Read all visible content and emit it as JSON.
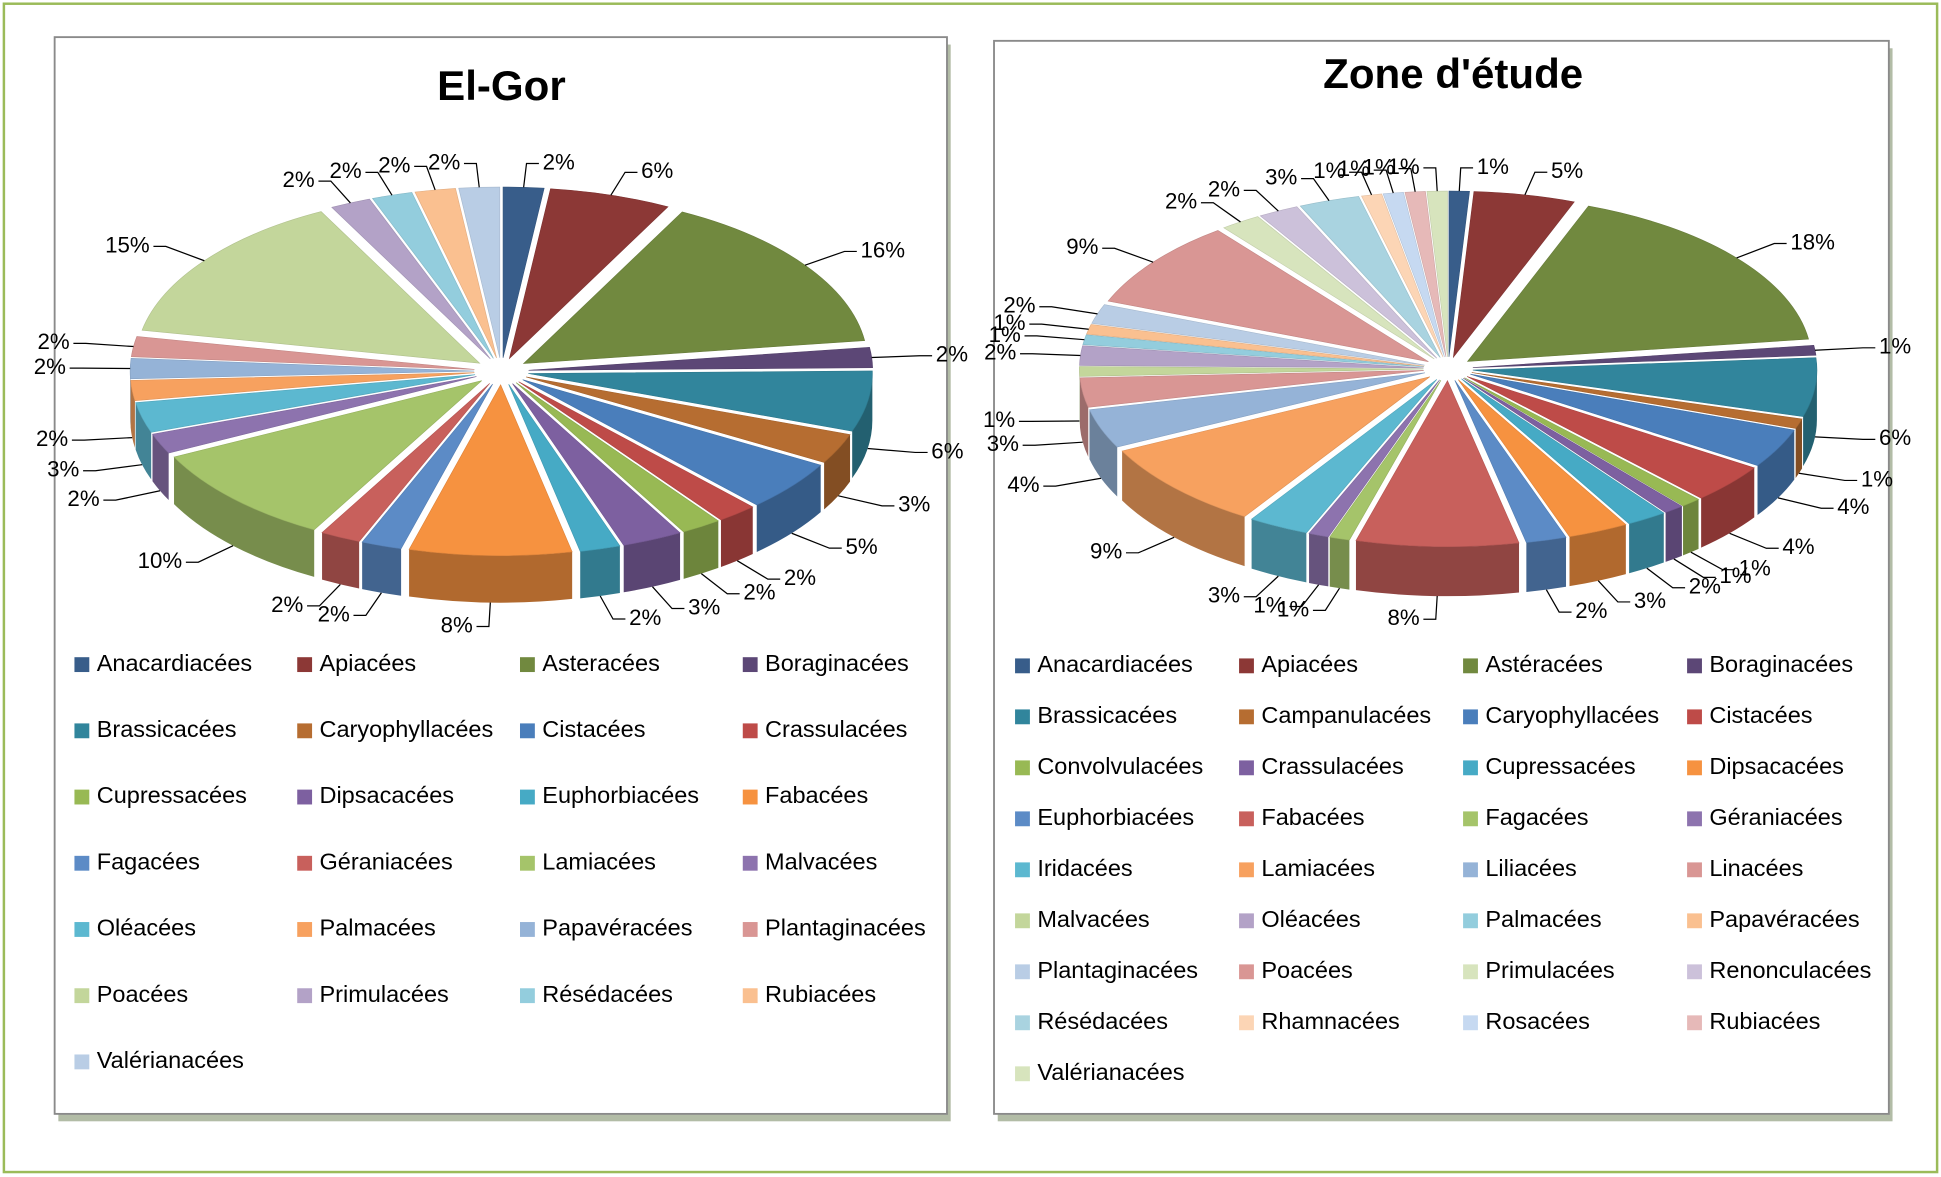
{
  "chart_data": [
    {
      "type": "pie",
      "title": "El-Gor",
      "categories": [
        "Anacardiacées",
        "Apiacées",
        "Asteracées",
        "Boraginacées",
        "Brassicacées",
        "Caryophyllacées",
        "Cistacées",
        "Crassulacées",
        "Cupressacées",
        "Dipsacacées",
        "Euphorbiacées",
        "Fabacées",
        "Fagacées",
        "Géraniacées",
        "Lamiacées",
        "Malvacées",
        "Oléacées",
        "Palmacées",
        "Papavéracées",
        "Plantaginacées",
        "Poacées",
        "Primulacées",
        "Résédacées",
        "Rubiacées",
        "Valérianacées"
      ],
      "values": [
        2,
        6,
        16,
        2,
        6,
        3,
        5,
        2,
        2,
        3,
        2,
        8,
        2,
        2,
        10,
        2,
        3,
        2,
        2,
        2,
        15,
        2,
        2,
        2,
        2
      ],
      "value_labels": [
        "2%",
        "6%",
        "16%",
        "2%",
        "6%",
        "3%",
        "5%",
        "2%",
        "2%",
        "3%",
        "2%",
        "8%",
        "2%",
        "2%",
        "10%",
        "2%",
        "3%",
        "2%",
        "2%",
        "2%",
        "15%",
        "2%",
        "2%",
        "2%",
        "2%"
      ],
      "colors": [
        "#385d8a",
        "#8c3836",
        "#71893f",
        "#5c4776",
        "#31859c",
        "#b66d31",
        "#4a7ebb",
        "#be4b48",
        "#98b954",
        "#7d60a0",
        "#46aac5",
        "#f69240",
        "#5c8bc6",
        "#c8605c",
        "#a5c46a",
        "#8d73ae",
        "#5cb8d0",
        "#f7a15f",
        "#95b3d7",
        "#d99694",
        "#c3d69b",
        "#b3a2c7",
        "#93cddd",
        "#fac090",
        "#b9cde5"
      ]
    },
    {
      "type": "pie",
      "title": "Zone d'étude",
      "categories": [
        "Anacardiacées",
        "Apiacées",
        "Astéracées",
        "Boraginacées",
        "Brassicacées",
        "Campanulacées",
        "Caryophyllacées",
        "Cistacées",
        "Convolvulacées",
        "Crassulacées",
        "Cupressacées",
        "Dipsacacées",
        "Euphorbiacées",
        "Fabacées",
        "Fagacées",
        "Géraniacées",
        "Iridacées",
        "Lamiacées",
        "Liliacées",
        "Linacées",
        "Malvacées",
        "Oléacées",
        "Palmacées",
        "Papavéracées",
        "Plantaginacées",
        "Poacées",
        "Primulacées",
        "Renonculacées",
        "Résédacées",
        "Rhamnacées",
        "Rosacées",
        "Rubiacées",
        "Valérianacées"
      ],
      "values": [
        1,
        5,
        18,
        1,
        6,
        1,
        4,
        4,
        1,
        1,
        2,
        3,
        2,
        8,
        1,
        1,
        3,
        9,
        4,
        3,
        1,
        2,
        1,
        1,
        2,
        9,
        2,
        2,
        3,
        1,
        1,
        1,
        1
      ],
      "value_labels": [
        "1%",
        "5%",
        "18%",
        "1%",
        "6%",
        "1%",
        "4%",
        "4%",
        "1%",
        "1%",
        "2%",
        "3%",
        "2%",
        "8%",
        "1%",
        "1%",
        "3%",
        "9%",
        "4%",
        "3%",
        "1%",
        "2%",
        "1%",
        "1%",
        "2%",
        "9%",
        "2%",
        "2%",
        "3%",
        "1%",
        "1%",
        "1%",
        "1%"
      ],
      "colors": [
        "#385d8a",
        "#8c3836",
        "#71893f",
        "#5c4776",
        "#31859c",
        "#b66d31",
        "#4a7ebb",
        "#be4b48",
        "#98b954",
        "#7d60a0",
        "#46aac5",
        "#f69240",
        "#5c8bc6",
        "#c8605c",
        "#a5c46a",
        "#8d73ae",
        "#5cb8d0",
        "#f7a15f",
        "#95b3d7",
        "#d99694",
        "#c3d69b",
        "#b3a2c7",
        "#93cddd",
        "#fac090",
        "#b9cde5",
        "#d99694",
        "#d7e4bd",
        "#ccc1da",
        "#a9d3e0",
        "#fcd5b5",
        "#c6d9f1",
        "#e6b9b8",
        "#d7e4bd"
      ]
    }
  ]
}
